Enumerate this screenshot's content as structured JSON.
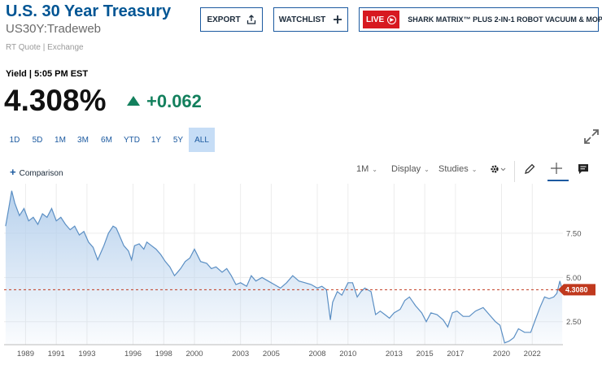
{
  "header": {
    "title": "U.S. 30 Year Treasury",
    "symbol": "US30Y:Tradeweb",
    "quote_info": "RT Quote | Exchange"
  },
  "buttons": {
    "export_label": "EXPORT",
    "watchlist_label": "WATCHLIST",
    "live_badge": "LIVE",
    "live_text": "SHARK MATRIX™ PLUS 2-IN-1 ROBOT VACUUM & MOP"
  },
  "quote": {
    "label": "Yield | 5:05 PM EST",
    "price": "4.308%",
    "change": "+0.062",
    "change_color": "#13805d",
    "direction": "up"
  },
  "ranges": [
    "1D",
    "5D",
    "1M",
    "3M",
    "6M",
    "YTD",
    "1Y",
    "5Y",
    "ALL"
  ],
  "active_range": "ALL",
  "toolbar": {
    "comparison_label": "Comparison",
    "interval_label": "1M",
    "display_label": "Display",
    "studies_label": "Studies"
  },
  "icons": [
    "export-icon",
    "plus-icon",
    "play-icon",
    "expand-icon",
    "gear-icon",
    "pencil-icon",
    "crosshair-icon",
    "comment-icon"
  ],
  "chart_data": {
    "type": "area",
    "line_color": "#5b8fc4",
    "fill_color": "#c9dcf0",
    "current_value_label": "4.3080",
    "current_value": 4.308,
    "current_label_color": "#c0391e",
    "x_tick_labels": [
      "1989",
      "1991",
      "1993",
      "1996",
      "1998",
      "2000",
      "2003",
      "2005",
      "2008",
      "2010",
      "2013",
      "2015",
      "2017",
      "2020",
      "2022"
    ],
    "y_tick_labels": [
      "7.50",
      "5.00",
      "2.50"
    ],
    "y_ticks": [
      7.5,
      5.0,
      2.5
    ],
    "ylim": [
      1.2,
      10.3
    ],
    "xlim": [
      1987.6,
      2024.0
    ],
    "grid": true,
    "series": [
      {
        "x": [
          1987.7,
          1987.9,
          1988.1,
          1988.3,
          1988.6,
          1988.9,
          1989.2,
          1989.5,
          1989.8,
          1990.1,
          1990.4,
          1990.7,
          1991.0,
          1991.3,
          1991.6,
          1991.9,
          1992.2,
          1992.5,
          1992.8,
          1993.1,
          1993.4,
          1993.7,
          1993.9,
          1994.1,
          1994.4,
          1994.7,
          1994.9,
          1995.1,
          1995.4,
          1995.7,
          1995.9,
          1996.1,
          1996.4,
          1996.7,
          1996.9,
          1997.2,
          1997.5,
          1997.8,
          1998.1,
          1998.4,
          1998.7,
          1998.9,
          1999.1,
          1999.4,
          1999.7,
          2000.0,
          2000.4,
          2000.8,
          2001.1,
          2001.4,
          2001.8,
          2002.1,
          2002.4,
          2002.7,
          2003.0,
          2003.4,
          2003.7,
          2004.0,
          2004.4,
          2004.8,
          2005.2,
          2005.6,
          2006.0,
          2006.4,
          2006.8,
          2007.2,
          2007.6,
          2008.0,
          2008.3,
          2008.6,
          2008.85,
          2009.0,
          2009.3,
          2009.6,
          2010.0,
          2010.3,
          2010.6,
          2010.85,
          2011.1,
          2011.5,
          2011.8,
          2012.1,
          2012.4,
          2012.7,
          2013.0,
          2013.4,
          2013.7,
          2014.0,
          2014.4,
          2014.8,
          2015.1,
          2015.4,
          2015.8,
          2016.2,
          2016.5,
          2016.8,
          2017.1,
          2017.5,
          2017.9,
          2018.3,
          2018.8,
          2019.2,
          2019.6,
          2019.9,
          2020.2,
          2020.5,
          2020.8,
          2021.1,
          2021.5,
          2021.9,
          2022.2,
          2022.5,
          2022.8,
          2023.1,
          2023.4,
          2023.6,
          2023.8,
          2023.95
        ],
        "y": [
          7.9,
          8.9,
          9.9,
          9.2,
          8.5,
          8.9,
          8.2,
          8.4,
          8.0,
          8.6,
          8.4,
          8.9,
          8.2,
          8.4,
          8.0,
          7.7,
          7.9,
          7.4,
          7.6,
          7.0,
          6.7,
          6.0,
          6.4,
          6.8,
          7.5,
          7.9,
          7.8,
          7.4,
          6.8,
          6.5,
          6.0,
          6.8,
          6.9,
          6.6,
          7.0,
          6.8,
          6.6,
          6.3,
          5.9,
          5.6,
          5.1,
          5.3,
          5.5,
          5.9,
          6.1,
          6.6,
          5.9,
          5.8,
          5.5,
          5.6,
          5.3,
          5.5,
          5.1,
          4.6,
          4.7,
          4.5,
          5.1,
          4.8,
          5.0,
          4.8,
          4.6,
          4.4,
          4.7,
          5.1,
          4.8,
          4.7,
          4.6,
          4.4,
          4.5,
          4.3,
          2.6,
          3.6,
          4.2,
          4.0,
          4.7,
          4.7,
          3.9,
          4.2,
          4.4,
          4.2,
          2.9,
          3.1,
          2.9,
          2.7,
          3.0,
          3.2,
          3.7,
          3.9,
          3.4,
          3.0,
          2.5,
          3.0,
          2.9,
          2.6,
          2.2,
          3.0,
          3.1,
          2.8,
          2.8,
          3.1,
          3.3,
          2.9,
          2.5,
          2.3,
          1.3,
          1.4,
          1.6,
          2.1,
          1.9,
          1.9,
          2.6,
          3.3,
          3.9,
          3.8,
          3.9,
          4.1,
          4.8,
          4.308
        ]
      }
    ]
  }
}
